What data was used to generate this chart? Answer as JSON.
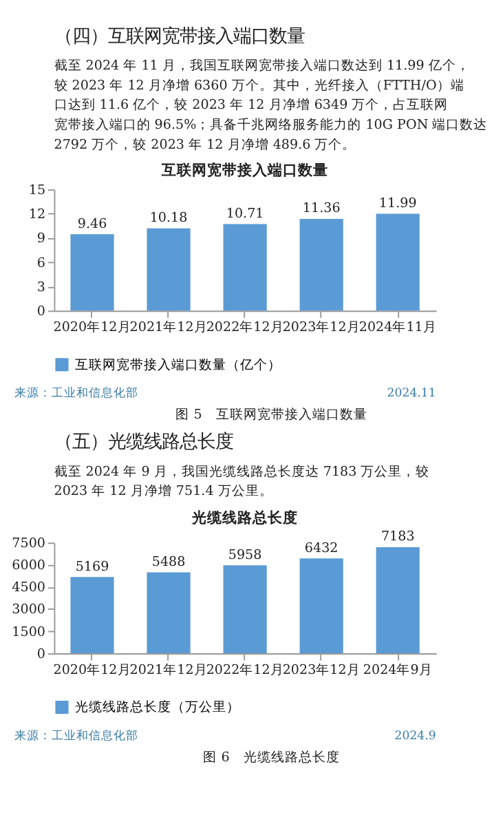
{
  "chart_data": [
    {
      "type": "bar",
      "title": "互联网宽带接入端口数量",
      "categories": [
        "2020年12月",
        "2021年12月",
        "2022年12月",
        "2023年12月",
        "2024年11月"
      ],
      "series": [
        {
          "name": "互联网宽带接入端口数量（亿个）",
          "color": "#5b9bd5",
          "values": [
            9.46,
            10.18,
            10.71,
            11.36,
            11.99
          ]
        }
      ],
      "ylim": [
        0,
        15
      ],
      "yticks": [
        0,
        3,
        6,
        9,
        12,
        15
      ],
      "grid": false,
      "legend": "bottom",
      "data_labels": true,
      "annotations": [
        "（四）互联网宽带接入端口数量",
        "截至 2024 年 11 月，我国互联网宽带接入端口数达到 11.99 亿个，较 2023 年 12 月净增 6360 万个。其中，光纤接入（FTTH/O）端口达到 11.6 亿个，较 2023 年 12 月净增 6349 万个，占互联网宽带接入端口的 96.5%；具备千兆网络服务能力的 10G PON 端口数达 2792 万个，较 2023 年 12 月净增 489.6 万个。",
        "来源：工业和信息化部",
        "2024.11",
        "图 5　互联网宽带接入端口数量"
      ]
    },
    {
      "type": "bar",
      "title": "光缆线路总长度",
      "categories": [
        "2020年12月",
        "2021年12月",
        "2022年12月",
        "2023年12月",
        "2024年9月"
      ],
      "series": [
        {
          "name": "光缆线路总长度（万公里）",
          "color": "#5b9bd5",
          "values": [
            5169,
            5488,
            5958,
            6432,
            7183
          ]
        }
      ],
      "ylim": [
        0,
        7500
      ],
      "yticks": [
        0,
        1500,
        3000,
        4500,
        6000,
        7500
      ],
      "grid": false,
      "legend": "bottom",
      "data_labels": true,
      "annotations": [
        "（五）光缆线路总长度",
        "截至 2024 年 9 月，我国光缆线路总长度达 7183 万公里，较 2023 年 12 月净增 751.4 万公里。",
        "来源：工业和信息化部",
        "2024.9",
        "图 6　光缆线路总长度"
      ]
    }
  ]
}
